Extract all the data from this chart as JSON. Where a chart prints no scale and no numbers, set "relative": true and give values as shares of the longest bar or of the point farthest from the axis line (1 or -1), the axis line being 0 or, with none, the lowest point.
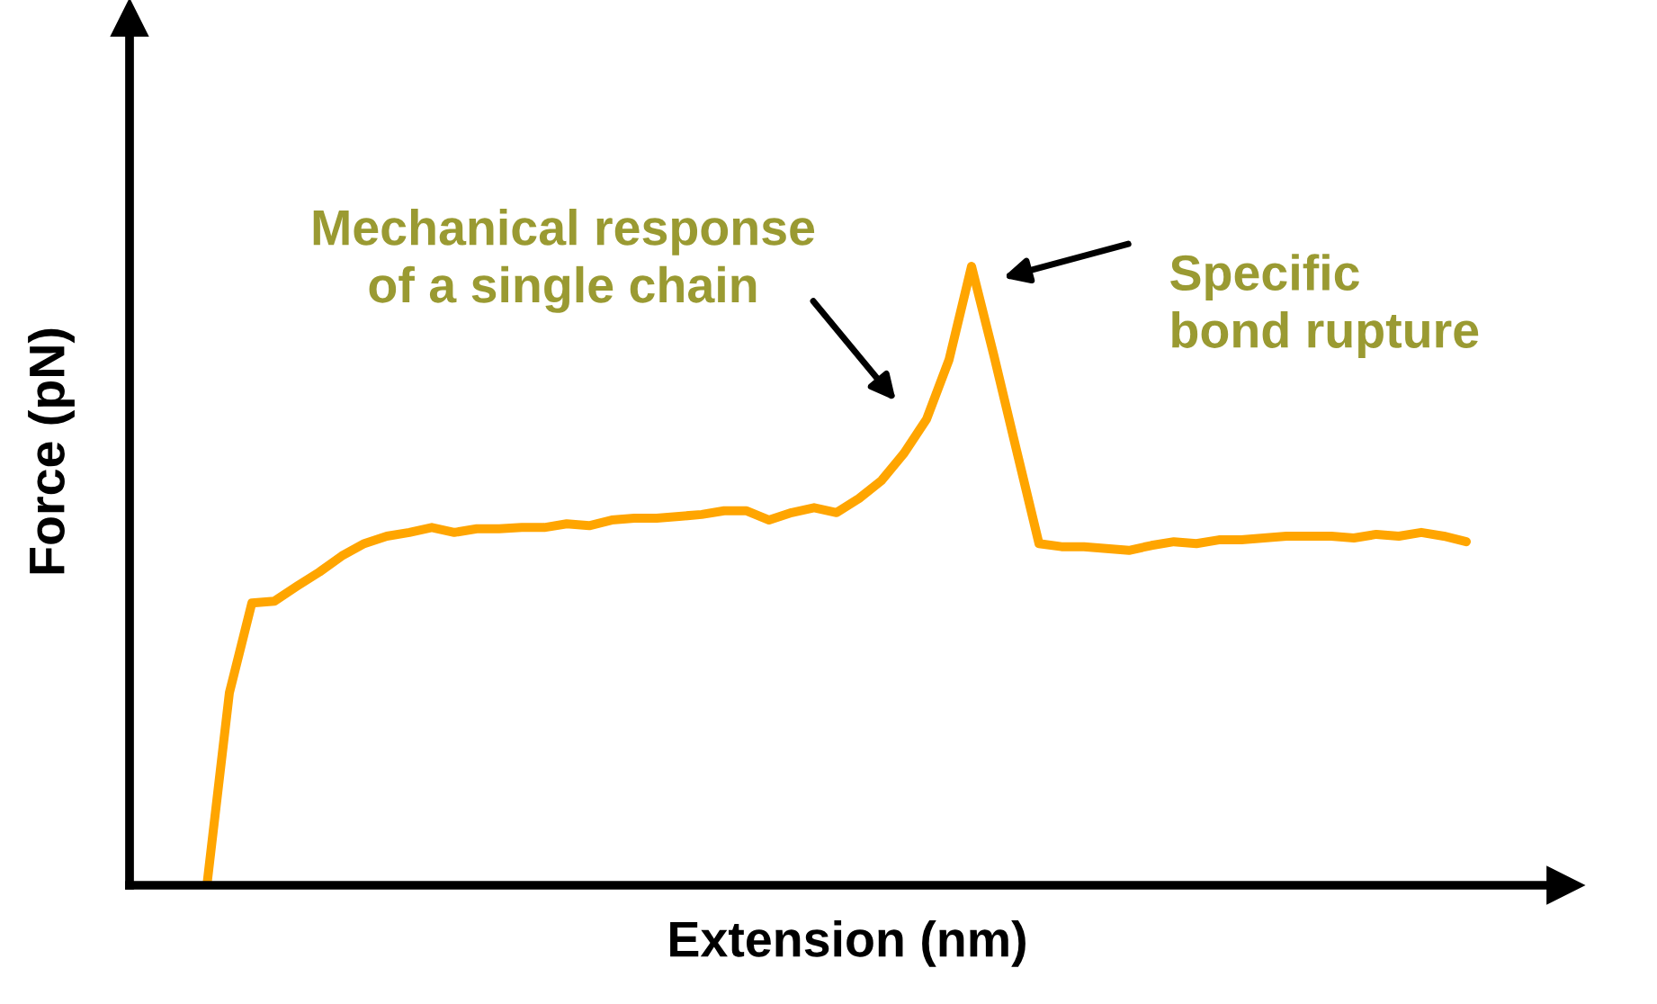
{
  "chart_data": {
    "type": "line",
    "relative": true,
    "xlabel": "Extension (nm)",
    "ylabel": "Force (pN)",
    "color": "#ffa500",
    "marker": "none",
    "line_style": "solid",
    "tick_labels": false,
    "annotations": [
      "Mechanical response\nof a single chain",
      "Specific\nbond rupture"
    ],
    "categories": [
      null,
      null,
      null,
      null,
      null,
      null,
      null,
      null,
      null,
      null,
      null,
      null,
      null,
      null,
      null,
      null,
      null,
      null,
      null,
      null,
      null,
      null,
      null,
      null,
      null,
      null,
      null,
      null,
      null,
      null,
      null,
      null,
      null,
      null,
      null,
      null,
      null,
      null,
      null,
      null,
      null,
      null,
      null,
      null,
      null,
      null,
      null,
      null,
      null,
      null,
      null,
      null,
      null,
      null,
      null,
      null,
      null
    ],
    "values": [
      0,
      0.311,
      0.456,
      0.459,
      0.483,
      0.506,
      0.532,
      0.552,
      0.564,
      0.57,
      0.578,
      0.57,
      0.576,
      0.576,
      0.578,
      0.578,
      0.584,
      0.581,
      0.59,
      0.593,
      0.593,
      0.596,
      0.599,
      0.605,
      0.605,
      0.59,
      0.602,
      0.61,
      0.602,
      0.625,
      0.654,
      0.698,
      0.753,
      0.849,
      1,
      0.855,
      0.703,
      0.552,
      0.547,
      0.547,
      0.544,
      0.541,
      0.549,
      0.555,
      0.552,
      0.558,
      0.558,
      0.561,
      0.564,
      0.564,
      0.564,
      0.561,
      0.567,
      0.564,
      0.57,
      0.564,
      0.555
    ]
  }
}
